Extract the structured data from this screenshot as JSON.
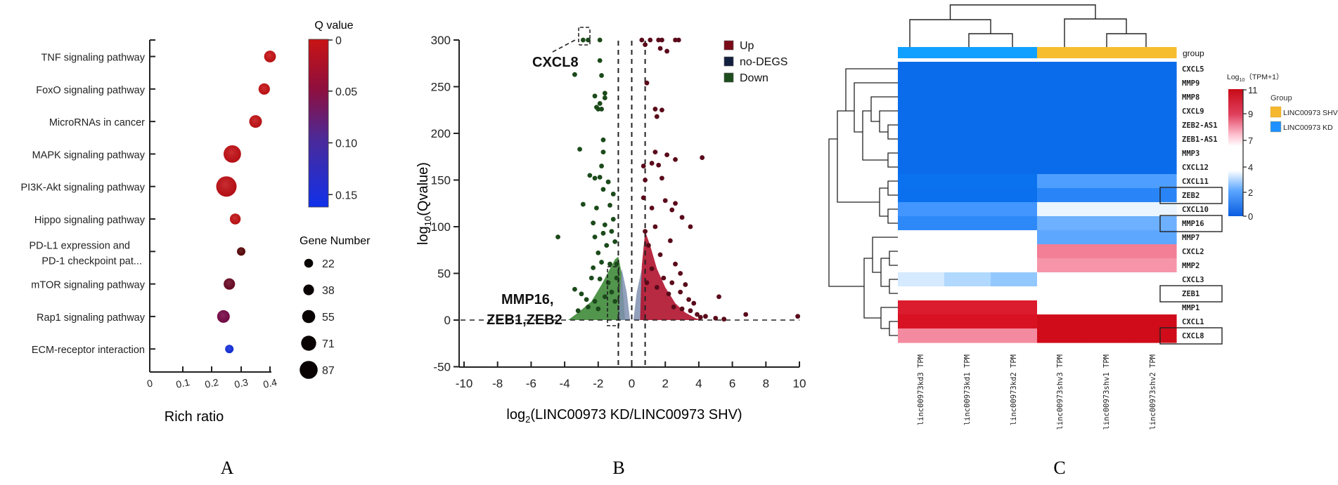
{
  "panel_labels": [
    "A",
    "B",
    "C"
  ],
  "chart_data": [
    {
      "id": "A",
      "type": "scatter",
      "subtype": "bubble",
      "title": "",
      "xlabel": "Rich ratio",
      "ylabel": "",
      "xlim": [
        0,
        0.4
      ],
      "x_ticks": [
        "0",
        "0.1",
        "0.2",
        "0.3",
        "0.4"
      ],
      "grid": false,
      "categories": [
        "TNF signaling pathway",
        "FoxO signaling pathway",
        "MicroRNAs in cancer",
        "MAPK signaling pathway",
        "PI3K-Akt signaling pathway",
        "Hippo signaling pathway",
        "PD-L1 expression and PD-1 checkpoint pat...",
        "mTOR signaling pathway",
        "Rap1 signaling pathway",
        "ECM-receptor interaction"
      ],
      "category_lines": [
        [
          "TNF signaling pathway"
        ],
        [
          "FoxO signaling pathway"
        ],
        [
          "MicroRNAs in cancer"
        ],
        [
          "MAPK signaling pathway"
        ],
        [
          "PI3K-Akt signaling pathway"
        ],
        [
          "Hippo signaling pathway"
        ],
        [
          "PD-L1 expression and",
          "PD-1 checkpoint pat..."
        ],
        [
          "mTOR signaling pathway"
        ],
        [
          "Rap1 signaling pathway"
        ],
        [
          "ECM-receptor interaction"
        ]
      ],
      "rich_ratio": [
        0.4,
        0.38,
        0.35,
        0.27,
        0.25,
        0.28,
        0.3,
        0.26,
        0.24,
        0.26
      ],
      "gene_number": [
        40,
        38,
        45,
        71,
        87,
        35,
        22,
        38,
        45,
        22
      ],
      "q_value": [
        0.005,
        0.008,
        0.01,
        0.012,
        0.015,
        0.01,
        0.045,
        0.06,
        0.08,
        0.16
      ],
      "color_legend": {
        "title": "Q value",
        "ticks": [
          "0",
          "0.05",
          "0.10",
          "0.15"
        ],
        "tick_values": [
          0,
          0.05,
          0.1,
          0.15
        ],
        "range": [
          0,
          0.17
        ],
        "colors": [
          "#cc1111",
          "#8a0f3a",
          "#4a2a9a",
          "#1530e0"
        ]
      },
      "size_legend": {
        "title": "Gene Number",
        "values": [
          22,
          38,
          55,
          71,
          87
        ]
      }
    },
    {
      "id": "B",
      "type": "scatter",
      "subtype": "volcano",
      "title": "",
      "xlabel_prefix": "log",
      "xlabel_sub": "2",
      "xlabel_rest": "(LINC00973 KD/LINC00973 SHV)",
      "ylabel_prefix": "log",
      "ylabel_sub": "10",
      "ylabel_rest": "(Qvalue)",
      "xlim": [
        -10,
        10
      ],
      "ylim": [
        -50,
        300
      ],
      "x_ticks": [
        -10,
        -8,
        -6,
        -4,
        -2,
        0,
        2,
        4,
        6,
        8,
        10
      ],
      "y_ticks": [
        -50,
        0,
        50,
        100,
        150,
        200,
        250,
        300
      ],
      "thresholds_x": [
        -0.8,
        0,
        0.8
      ],
      "threshold_y": 0,
      "legend": {
        "placement": "top-right",
        "items": [
          {
            "label": "Up",
            "color": "#7a0a18"
          },
          {
            "label": "no-DEGS",
            "color": "#142040"
          },
          {
            "label": "Down",
            "color": "#1d4d1d"
          }
        ]
      },
      "annotations": [
        {
          "label": "CXCL8",
          "x": -2.9,
          "y": 300
        },
        {
          "label": "MMP16,",
          "x": -1.0,
          "y": 0
        },
        {
          "label": "ZEB1,ZEB2",
          "x": -1.0,
          "y": 0
        }
      ],
      "series": [
        {
          "name": "Down",
          "color": "#1b4a1b",
          "points": [
            [
              -2.9,
              300
            ],
            [
              -2.6,
              300
            ],
            [
              -1.9,
              300
            ],
            [
              -1.9,
              278
            ],
            [
              -3.4,
              263
            ],
            [
              -1.8,
              262
            ],
            [
              -2.2,
              240
            ],
            [
              -1.6,
              243
            ],
            [
              -1.6,
              238
            ],
            [
              -2.1,
              228
            ],
            [
              -1.9,
              232
            ],
            [
              -2.0,
              226
            ],
            [
              -1.8,
              226
            ],
            [
              -1.7,
              193
            ],
            [
              -3.1,
              183
            ],
            [
              -1.7,
              180
            ],
            [
              -1.8,
              165
            ],
            [
              -2.5,
              155
            ],
            [
              -2.2,
              152
            ],
            [
              -1.9,
              153
            ],
            [
              -1.4,
              148
            ],
            [
              -1.7,
              140
            ],
            [
              -1.1,
              135
            ],
            [
              -2.9,
              124
            ],
            [
              -2.1,
              120
            ],
            [
              -1.3,
              123
            ],
            [
              -2.3,
              104
            ],
            [
              -1.6,
              102
            ],
            [
              -1.1,
              108
            ],
            [
              -4.4,
              89
            ],
            [
              -2.2,
              89
            ],
            [
              -1.7,
              93
            ],
            [
              -1.2,
              95
            ],
            [
              -2.0,
              72
            ],
            [
              -1.5,
              80
            ],
            [
              -1.0,
              84
            ],
            [
              -2.3,
              56
            ],
            [
              -1.8,
              62
            ],
            [
              -1.3,
              60
            ],
            [
              -2.4,
              45
            ],
            [
              -1.9,
              44
            ],
            [
              -1.4,
              40
            ],
            [
              -3.4,
              33
            ],
            [
              -3.0,
              28
            ],
            [
              -2.7,
              22
            ],
            [
              -2.2,
              20
            ],
            [
              -2.6,
              14
            ],
            [
              -3.2,
              10
            ],
            [
              -2.0,
              12
            ],
            [
              -1.6,
              25
            ],
            [
              -1.2,
              30
            ],
            [
              -0.9,
              60
            ],
            [
              -0.9,
              45
            ],
            [
              -1.0,
              20
            ]
          ]
        },
        {
          "name": "Up",
          "color": "#5a0a1a",
          "points": [
            [
              0.6,
              300
            ],
            [
              1.1,
              300
            ],
            [
              1.6,
              300
            ],
            [
              1.8,
              300
            ],
            [
              2.6,
              300
            ],
            [
              2.8,
              300
            ],
            [
              0.8,
              295
            ],
            [
              1.7,
              291
            ],
            [
              2.1,
              288
            ],
            [
              0.9,
              254
            ],
            [
              1.4,
              226
            ],
            [
              1.8,
              225
            ],
            [
              1.5,
              218
            ],
            [
              1.4,
              180
            ],
            [
              2.1,
              177
            ],
            [
              2.6,
              172
            ],
            [
              4.2,
              174
            ],
            [
              0.7,
              165
            ],
            [
              1.2,
              168
            ],
            [
              1.6,
              166
            ],
            [
              0.8,
              150
            ],
            [
              1.8,
              152
            ],
            [
              0.7,
              131
            ],
            [
              1.2,
              120
            ],
            [
              2.0,
              128
            ],
            [
              2.6,
              125
            ],
            [
              2.4,
              118
            ],
            [
              3.0,
              110
            ],
            [
              1.4,
              100
            ],
            [
              3.5,
              100
            ],
            [
              2.3,
              85
            ],
            [
              0.8,
              95
            ],
            [
              1.0,
              80
            ],
            [
              1.7,
              70
            ],
            [
              2.6,
              60
            ],
            [
              2.9,
              50
            ],
            [
              1.9,
              45
            ],
            [
              2.4,
              40
            ],
            [
              3.2,
              38
            ],
            [
              2.9,
              30
            ],
            [
              2.2,
              28
            ],
            [
              3.4,
              22
            ],
            [
              3.7,
              18
            ],
            [
              2.5,
              14
            ],
            [
              3.0,
              12
            ],
            [
              3.5,
              10
            ],
            [
              3.9,
              6
            ],
            [
              4.4,
              4
            ],
            [
              5.0,
              2
            ],
            [
              5.5,
              1
            ],
            [
              4.1,
              3
            ],
            [
              5.2,
              25
            ],
            [
              6.8,
              6
            ],
            [
              9.9,
              4
            ],
            [
              1.2,
              55
            ],
            [
              0.9,
              40
            ],
            [
              1.5,
              35
            ]
          ]
        }
      ],
      "filled_regions": [
        {
          "name": "Down-dense",
          "color": "#3f8a3a"
        },
        {
          "name": "no-DEGS",
          "color": "#7f8fb0"
        },
        {
          "name": "Up-dense",
          "color": "#b0122e"
        }
      ]
    },
    {
      "id": "C",
      "type": "heatmap",
      "title": "",
      "row_labels": [
        "CXCL5",
        "MMP9",
        "MMP8",
        "CXCL9",
        "ZEB2-AS1",
        "ZEB1-AS1",
        "MMP3",
        "CXCL12",
        "CXCL11",
        "ZEB2",
        "CXCL10",
        "MMP16",
        "MMP7",
        "CXCL2",
        "MMP2",
        "CXCL3",
        "ZEB1",
        "MMP1",
        "CXCL1",
        "CXCL8"
      ],
      "highlighted_rows": [
        "ZEB2",
        "MMP16",
        "ZEB1",
        "CXCL8"
      ],
      "column_labels": [
        "linc00973kd3 TPM",
        "linc00973kd1 TPM",
        "linc00973kd2 TPM",
        "linc00973shv3 TPM",
        "linc00973shv1 TPM",
        "linc00973shv2 TPM"
      ],
      "column_groups": [
        "LINC00973 KD",
        "LINC00973 KD",
        "LINC00973 KD",
        "LINC00973 SHV",
        "LINC00973 SHV",
        "LINC00973 SHV"
      ],
      "group_row_label": "group",
      "values": [
        [
          0.5,
          0.5,
          0.5,
          0.5,
          0.5,
          0.5
        ],
        [
          0.5,
          0.5,
          0.5,
          0.5,
          0.5,
          0.5
        ],
        [
          0.5,
          0.5,
          0.5,
          0.5,
          0.5,
          0.5
        ],
        [
          0.5,
          0.5,
          0.5,
          0.5,
          0.5,
          0.5
        ],
        [
          0.5,
          0.5,
          0.5,
          0.5,
          0.5,
          0.5
        ],
        [
          0.5,
          0.5,
          0.5,
          0.5,
          0.5,
          0.5
        ],
        [
          0.5,
          0.5,
          0.5,
          0.5,
          0.5,
          0.5
        ],
        [
          0.5,
          0.5,
          0.5,
          0.5,
          0.5,
          0.5
        ],
        [
          1.2,
          1.2,
          1.2,
          2.5,
          2.5,
          2.5
        ],
        [
          1.0,
          1.0,
          1.0,
          1.8,
          1.8,
          1.8
        ],
        [
          2.3,
          2.3,
          2.3,
          4.6,
          4.6,
          4.6
        ],
        [
          1.9,
          1.9,
          1.9,
          2.9,
          2.9,
          2.9
        ],
        [
          null,
          null,
          null,
          2.7,
          2.7,
          2.7
        ],
        [
          null,
          null,
          null,
          8.0,
          8.0,
          8.0
        ],
        [
          null,
          null,
          null,
          7.8,
          7.8,
          7.8
        ],
        [
          4.3,
          3.8,
          3.4,
          null,
          null,
          null
        ],
        [
          null,
          null,
          null,
          null,
          null,
          null
        ],
        [
          9.5,
          9.5,
          9.5,
          null,
          null,
          null
        ],
        [
          9.7,
          9.7,
          9.7,
          10.6,
          10.6,
          10.6
        ],
        [
          7.9,
          7.9,
          7.9,
          10.6,
          10.6,
          10.6
        ]
      ],
      "color_scale": {
        "title_prefix": "Log",
        "title_sub": "10",
        "title_rest": "（TPM+1）",
        "range": [
          0,
          11
        ],
        "ticks": [
          0,
          2,
          4,
          7,
          9,
          11
        ],
        "colors": [
          "#0a5de0",
          "#5aa8ff",
          "#ffffff",
          "#ffd0dc",
          "#e04060",
          "#cc0a18"
        ]
      },
      "group_legend": {
        "title": "Group",
        "items": [
          {
            "label": "LINC00973 SHV",
            "color": "#f5b82e"
          },
          {
            "label": "LINC00973 KD",
            "color": "#1e90ff"
          }
        ]
      }
    }
  ]
}
